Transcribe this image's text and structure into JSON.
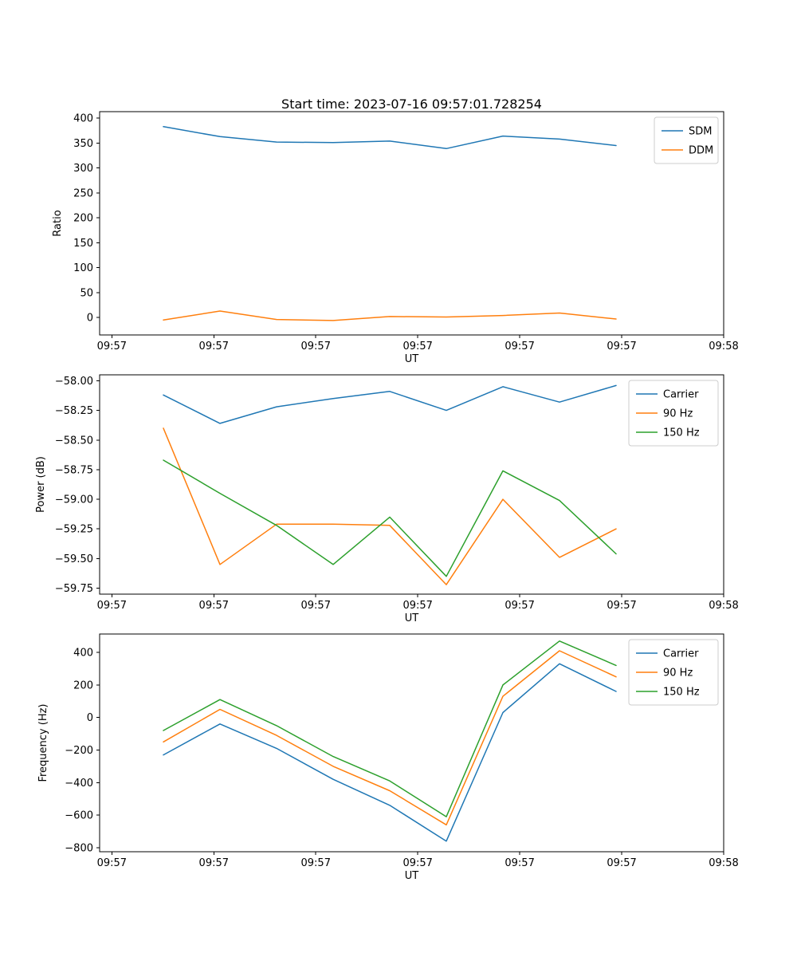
{
  "chart_data": [
    {
      "type": "line",
      "title": "Start time: 2023-07-16 09:57:01.728254",
      "xlabel": "UT",
      "ylabel": "Ratio",
      "xlim": [
        -1.2,
        60
      ],
      "ylim": [
        -35,
        413
      ],
      "grid": false,
      "legend_position": "upper right",
      "legend_entries": [
        "SDM",
        "DDM"
      ],
      "x_ticks": [
        {
          "v": 0,
          "label": "09:57"
        },
        {
          "v": 10,
          "label": "09:57"
        },
        {
          "v": 20,
          "label": "09:57"
        },
        {
          "v": 30,
          "label": "09:57"
        },
        {
          "v": 40,
          "label": "09:57"
        },
        {
          "v": 50,
          "label": "09:57"
        },
        {
          "v": 60,
          "label": "09:58"
        }
      ],
      "y_ticks": [
        {
          "v": 0,
          "label": "0"
        },
        {
          "v": 50,
          "label": "50"
        },
        {
          "v": 100,
          "label": "100"
        },
        {
          "v": 150,
          "label": "150"
        },
        {
          "v": 200,
          "label": "200"
        },
        {
          "v": 250,
          "label": "250"
        },
        {
          "v": 300,
          "label": "300"
        },
        {
          "v": 350,
          "label": "350"
        },
        {
          "v": 400,
          "label": "400"
        }
      ],
      "x": [
        5.05,
        10.6,
        16.15,
        21.7,
        27.25,
        32.8,
        38.35,
        43.9,
        49.45
      ],
      "series": [
        {
          "name": "SDM",
          "color": "#1f77b4",
          "values": [
            383,
            363,
            352,
            351,
            354,
            339,
            364,
            358,
            345
          ]
        },
        {
          "name": "DDM",
          "color": "#ff7f0e",
          "values": [
            -5,
            13,
            -4,
            -6,
            2,
            1,
            4,
            9,
            -3
          ]
        }
      ]
    },
    {
      "type": "line",
      "xlabel": "UT",
      "ylabel": "Power (dB)",
      "xlim": [
        -1.2,
        60
      ],
      "ylim": [
        -59.8,
        -57.95
      ],
      "grid": false,
      "legend_position": "upper right",
      "legend_entries": [
        "Carrier",
        "90 Hz",
        "150 Hz"
      ],
      "x_ticks": [
        {
          "v": 0,
          "label": "09:57"
        },
        {
          "v": 10,
          "label": "09:57"
        },
        {
          "v": 20,
          "label": "09:57"
        },
        {
          "v": 30,
          "label": "09:57"
        },
        {
          "v": 40,
          "label": "09:57"
        },
        {
          "v": 50,
          "label": "09:57"
        },
        {
          "v": 60,
          "label": "09:58"
        }
      ],
      "y_ticks": [
        {
          "v": -59.75,
          "label": "−59.75"
        },
        {
          "v": -59.5,
          "label": "−59.50"
        },
        {
          "v": -59.25,
          "label": "−59.25"
        },
        {
          "v": -59.0,
          "label": "−59.00"
        },
        {
          "v": -58.75,
          "label": "−58.75"
        },
        {
          "v": -58.5,
          "label": "−58.50"
        },
        {
          "v": -58.25,
          "label": "−58.25"
        },
        {
          "v": -58.0,
          "label": "−58.00"
        }
      ],
      "x": [
        5.05,
        10.6,
        16.15,
        21.7,
        27.25,
        32.8,
        38.35,
        43.9,
        49.45
      ],
      "series": [
        {
          "name": "Carrier",
          "color": "#1f77b4",
          "values": [
            -58.12,
            -58.36,
            -58.22,
            -58.15,
            -58.09,
            -58.25,
            -58.05,
            -58.18,
            -58.04
          ]
        },
        {
          "name": "90 Hz",
          "color": "#ff7f0e",
          "values": [
            -58.4,
            -59.55,
            -59.21,
            -59.21,
            -59.22,
            -59.72,
            -59.0,
            -59.49,
            -59.25
          ]
        },
        {
          "name": "150 Hz",
          "color": "#2ca02c",
          "values": [
            -58.67,
            -58.95,
            -59.22,
            -59.55,
            -59.15,
            -59.65,
            -58.76,
            -59.01,
            -59.46
          ]
        }
      ]
    },
    {
      "type": "line",
      "xlabel": "UT",
      "ylabel": "Frequency (Hz)",
      "xlim": [
        -1.2,
        60
      ],
      "ylim": [
        -825,
        513
      ],
      "grid": false,
      "legend_position": "upper right",
      "legend_entries": [
        "Carrier",
        "90 Hz",
        "150 Hz"
      ],
      "x_ticks": [
        {
          "v": 0,
          "label": "09:57"
        },
        {
          "v": 10,
          "label": "09:57"
        },
        {
          "v": 20,
          "label": "09:57"
        },
        {
          "v": 30,
          "label": "09:57"
        },
        {
          "v": 40,
          "label": "09:57"
        },
        {
          "v": 50,
          "label": "09:57"
        },
        {
          "v": 60,
          "label": "09:58"
        }
      ],
      "y_ticks": [
        {
          "v": -800,
          "label": "−800"
        },
        {
          "v": -600,
          "label": "−600"
        },
        {
          "v": -400,
          "label": "−400"
        },
        {
          "v": -200,
          "label": "−200"
        },
        {
          "v": 0,
          "label": "0"
        },
        {
          "v": 200,
          "label": "200"
        },
        {
          "v": 400,
          "label": "400"
        }
      ],
      "x": [
        5.05,
        10.6,
        16.15,
        21.7,
        27.25,
        32.8,
        38.35,
        43.9,
        49.45
      ],
      "series": [
        {
          "name": "Carrier",
          "color": "#1f77b4",
          "values": [
            -230,
            -40,
            -190,
            -380,
            -540,
            -760,
            30,
            330,
            160
          ]
        },
        {
          "name": "90 Hz",
          "color": "#ff7f0e",
          "values": [
            -150,
            50,
            -110,
            -300,
            -450,
            -660,
            130,
            410,
            250
          ]
        },
        {
          "name": "150 Hz",
          "color": "#2ca02c",
          "values": [
            -80,
            110,
            -50,
            -240,
            -390,
            -610,
            200,
            470,
            320
          ]
        }
      ]
    }
  ]
}
